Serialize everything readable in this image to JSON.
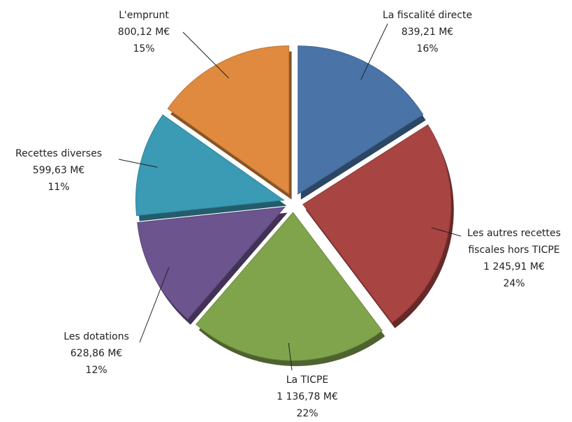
{
  "chart_data": {
    "type": "pie",
    "categories": [
      "La fiscalité directe",
      "Les autres recettes fiscales hors TICPE",
      "La TICPE",
      "Les dotations",
      "Recettes diverses",
      "L'emprunt"
    ],
    "values": [
      839.21,
      1245.91,
      1136.78,
      628.86,
      599.63,
      800.12
    ],
    "value_labels": [
      "839,21 M€",
      "1 245,91 M€",
      "1 136,78 M€",
      "628,86 M€",
      "599,63 M€",
      "800,12 M€"
    ],
    "percents": [
      16,
      24,
      22,
      12,
      11,
      15
    ],
    "percent_labels": [
      "16%",
      "24%",
      "22%",
      "12%",
      "11%",
      "15%"
    ],
    "colors": [
      "#4a74a8",
      "#a84442",
      "#80a44c",
      "#6c548f",
      "#3b9ab4",
      "#df8a3f"
    ]
  }
}
